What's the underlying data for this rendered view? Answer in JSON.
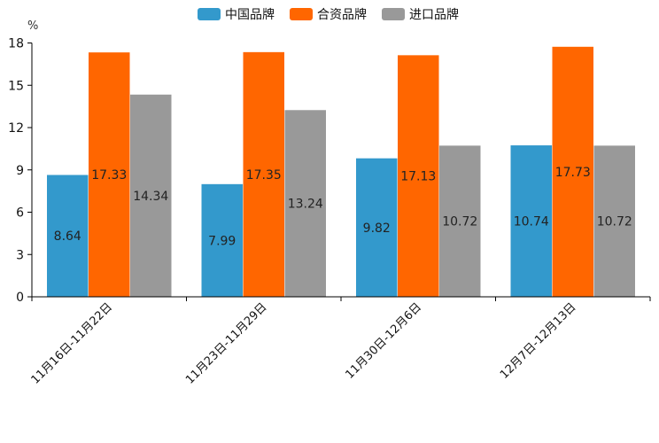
{
  "chart_data": {
    "type": "bar",
    "title": "",
    "unit_label": "%",
    "xlabel": "",
    "ylabel": "%",
    "ylim": [
      0,
      18
    ],
    "yticks": [
      0,
      3,
      6,
      9,
      12,
      15,
      18
    ],
    "categories": [
      "11月16日-11月22日",
      "11月23日-11月29日",
      "11月30日-12月6日",
      "12月7日-12月13日"
    ],
    "series": [
      {
        "name": "中国品牌",
        "color": "#3399cc",
        "values": [
          8.64,
          7.99,
          9.82,
          10.74
        ],
        "labels": [
          "8.64",
          "7.99",
          "9.82",
          "10.74"
        ]
      },
      {
        "name": "合资品牌",
        "color": "#ff6600",
        "values": [
          17.33,
          17.35,
          17.13,
          17.73
        ],
        "labels": [
          "17.33",
          "17.35",
          "17.13",
          "17.73"
        ]
      },
      {
        "name": "进口品牌",
        "color": "#999999",
        "values": [
          14.34,
          13.24,
          10.72,
          10.72
        ],
        "labels": [
          "14.34",
          "13.24",
          "10.72",
          "10.72"
        ]
      }
    ],
    "legend_position": "top-center",
    "grid": false
  }
}
